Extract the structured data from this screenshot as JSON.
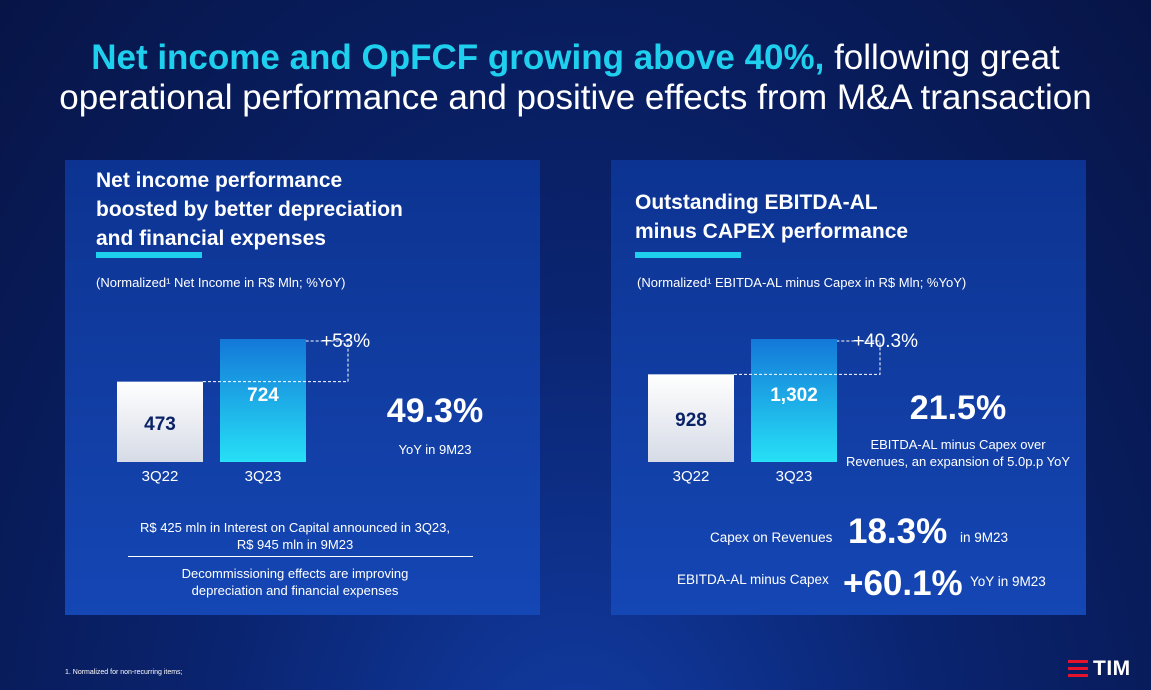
{
  "title": {
    "highlight": "Net income and OpFCF growing above 40%,",
    "line1_rest": " following great",
    "line2": "operational performance and positive effects from M&A transaction"
  },
  "left": {
    "title": "Net income performance\nboosted by better depreciation\nand financial expenses",
    "subtitle": "(Normalized¹ Net Income in R$ Mln; %YoY)",
    "growth_label": "+53%",
    "big_value": "49.3%",
    "big_caption": "YoY in 9M23",
    "note1_line1": "R$ 425 mln in Interest on Capital announced in 3Q23,",
    "note1_line2": "R$ 945 mln in 9M23",
    "note2_line1": "Decommissioning effects are improving",
    "note2_line2": "depreciation and financial expenses"
  },
  "right": {
    "title": "Outstanding EBITDA-AL\nminus CAPEX performance",
    "subtitle": "(Normalized¹ EBITDA-AL minus Capex in R$ Mln; %YoY)",
    "growth_label": "+40.3%",
    "big_value": "21.5%",
    "big_caption_line1": "EBITDA-AL minus Capex over",
    "big_caption_line2": "Revenues, an expansion of 5.0p.p YoY",
    "metric1_label": "Capex on Revenues",
    "metric1_value": "18.3%",
    "metric1_suffix": "in 9M23",
    "metric2_label": "EBITDA-AL minus Capex",
    "metric2_value": "+60.1%",
    "metric2_suffix": "YoY in 9M23"
  },
  "chart_data": [
    {
      "type": "bar",
      "categories": [
        "3Q22",
        "3Q23"
      ],
      "values": [
        473,
        724
      ],
      "value_labels": [
        "473",
        "724"
      ],
      "title": "",
      "xlabel": "",
      "ylabel": "",
      "annotation": "+53%"
    },
    {
      "type": "bar",
      "categories": [
        "3Q22",
        "3Q23"
      ],
      "values": [
        928,
        1302
      ],
      "value_labels": [
        "928",
        "1,302"
      ],
      "title": "",
      "xlabel": "",
      "ylabel": "",
      "annotation": "+40.3%"
    }
  ],
  "colors": {
    "accent": "#1fd0ee",
    "brand_red": "#e4122a"
  },
  "footnote": "1. Normalized for non-recurring items;",
  "logo": "TIM"
}
